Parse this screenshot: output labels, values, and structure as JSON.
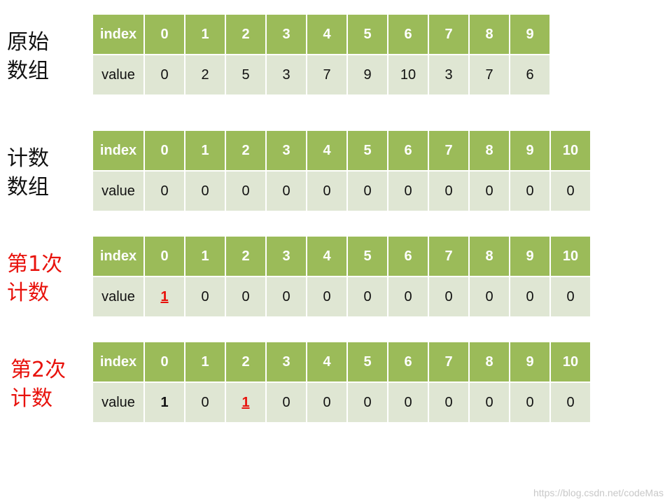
{
  "sections": [
    {
      "label_lines": [
        "原始",
        "数组"
      ],
      "header_label": "index",
      "value_label": "value",
      "indices": [
        "0",
        "1",
        "2",
        "3",
        "4",
        "5",
        "6",
        "7",
        "8",
        "9"
      ],
      "values": [
        "0",
        "2",
        "5",
        "3",
        "7",
        "9",
        "10",
        "3",
        "7",
        "6"
      ]
    },
    {
      "label_lines": [
        "计数",
        "数组"
      ],
      "header_label": "index",
      "value_label": "value",
      "indices": [
        "0",
        "1",
        "2",
        "3",
        "4",
        "5",
        "6",
        "7",
        "8",
        "9",
        "10"
      ],
      "values": [
        "0",
        "0",
        "0",
        "0",
        "0",
        "0",
        "0",
        "0",
        "0",
        "0",
        "0"
      ]
    },
    {
      "label_lines": [
        "第1次",
        "计数"
      ],
      "header_label": "index",
      "value_label": "value",
      "indices": [
        "0",
        "1",
        "2",
        "3",
        "4",
        "5",
        "6",
        "7",
        "8",
        "9",
        "10"
      ],
      "values": [
        "1",
        "0",
        "0",
        "0",
        "0",
        "0",
        "0",
        "0",
        "0",
        "0",
        "0"
      ]
    },
    {
      "label_lines": [
        "第2次",
        "计数"
      ],
      "header_label": "index",
      "value_label": "value",
      "indices": [
        "0",
        "1",
        "2",
        "3",
        "4",
        "5",
        "6",
        "7",
        "8",
        "9",
        "10"
      ],
      "values": [
        "1",
        "0",
        "1",
        "0",
        "0",
        "0",
        "0",
        "0",
        "0",
        "0",
        "0"
      ]
    }
  ],
  "colors": {
    "header_bg": "#9bbb59",
    "value_bg": "#dfe6d3",
    "highlight": "#e8120c"
  },
  "watermark": "https://blog.csdn.net/codeMas"
}
